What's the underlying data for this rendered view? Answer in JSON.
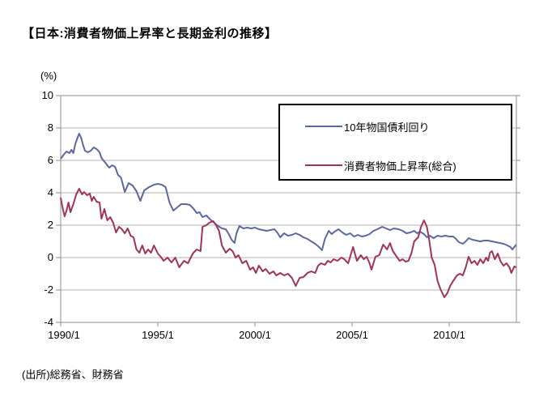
{
  "title": "【日本:消費者物価上昇率と長期金利の推移】",
  "y_axis_unit": "(%)",
  "source_note": "(出所)総務省、財務省",
  "colors": {
    "bond_yield_line": "#5d67a1",
    "cpi_line": "#a03358",
    "gridline": "#b3b3b3",
    "axis": "#8c8c8c",
    "text": "#000000",
    "legend_border": "#000000"
  },
  "chart_data": {
    "type": "line",
    "title": "【日本:消費者物価上昇率と長期金利の推移】",
    "xlabel": "",
    "ylabel": "(%)",
    "ylim": [
      -4,
      10
    ],
    "xlim": [
      1990.0,
      2013.46
    ],
    "grid": "horizontal",
    "legend_position": "top-right-box",
    "y_ticks": [
      10,
      8,
      6,
      4,
      2,
      0,
      -2,
      -4
    ],
    "x_ticks": [
      {
        "year": 1990,
        "label": "1990/1"
      },
      {
        "year": 1995,
        "label": "1995/1"
      },
      {
        "year": 2000,
        "label": "2000/1"
      },
      {
        "year": 2005,
        "label": "2005/1"
      },
      {
        "year": 2010,
        "label": "2010/1"
      }
    ],
    "series": [
      {
        "name": "10年物国債利回り",
        "color": "#5d67a1",
        "points": [
          [
            1990.0,
            6.1
          ],
          [
            1990.15,
            6.35
          ],
          [
            1990.3,
            6.55
          ],
          [
            1990.45,
            6.45
          ],
          [
            1990.55,
            6.65
          ],
          [
            1990.65,
            6.45
          ],
          [
            1990.75,
            7.0
          ],
          [
            1990.85,
            7.35
          ],
          [
            1990.95,
            7.65
          ],
          [
            1991.05,
            7.4
          ],
          [
            1991.15,
            6.95
          ],
          [
            1991.25,
            6.6
          ],
          [
            1991.4,
            6.5
          ],
          [
            1991.55,
            6.6
          ],
          [
            1991.7,
            6.8
          ],
          [
            1991.85,
            6.7
          ],
          [
            1992.0,
            6.5
          ],
          [
            1992.1,
            6.15
          ],
          [
            1992.3,
            5.85
          ],
          [
            1992.5,
            5.55
          ],
          [
            1992.65,
            5.7
          ],
          [
            1992.8,
            5.6
          ],
          [
            1992.95,
            5.1
          ],
          [
            1993.1,
            4.95
          ],
          [
            1993.3,
            4.05
          ],
          [
            1993.5,
            4.6
          ],
          [
            1993.7,
            4.45
          ],
          [
            1993.9,
            4.1
          ],
          [
            1994.1,
            3.5
          ],
          [
            1994.3,
            4.15
          ],
          [
            1994.55,
            4.35
          ],
          [
            1994.8,
            4.5
          ],
          [
            1995.0,
            4.55
          ],
          [
            1995.2,
            4.5
          ],
          [
            1995.4,
            4.35
          ],
          [
            1995.6,
            3.4
          ],
          [
            1995.8,
            2.9
          ],
          [
            1996.0,
            3.1
          ],
          [
            1996.2,
            3.3
          ],
          [
            1996.45,
            3.3
          ],
          [
            1996.65,
            3.25
          ],
          [
            1996.85,
            3.0
          ],
          [
            1997.0,
            2.75
          ],
          [
            1997.15,
            2.8
          ],
          [
            1997.3,
            2.5
          ],
          [
            1997.5,
            2.6
          ],
          [
            1997.7,
            2.35
          ],
          [
            1997.9,
            2.15
          ],
          [
            1998.1,
            1.95
          ],
          [
            1998.3,
            1.8
          ],
          [
            1998.5,
            1.75
          ],
          [
            1998.65,
            1.45
          ],
          [
            1998.8,
            1.1
          ],
          [
            1998.95,
            0.9
          ],
          [
            1999.05,
            1.5
          ],
          [
            1999.2,
            1.95
          ],
          [
            1999.4,
            1.8
          ],
          [
            1999.6,
            1.85
          ],
          [
            1999.8,
            1.8
          ],
          [
            2000.0,
            1.85
          ],
          [
            2000.2,
            1.75
          ],
          [
            2000.4,
            1.7
          ],
          [
            2000.6,
            1.65
          ],
          [
            2000.8,
            1.7
          ],
          [
            2001.0,
            1.75
          ],
          [
            2001.15,
            1.55
          ],
          [
            2001.3,
            1.25
          ],
          [
            2001.5,
            1.5
          ],
          [
            2001.7,
            1.35
          ],
          [
            2001.9,
            1.4
          ],
          [
            2002.1,
            1.5
          ],
          [
            2002.3,
            1.4
          ],
          [
            2002.5,
            1.25
          ],
          [
            2002.7,
            1.15
          ],
          [
            2002.9,
            1.0
          ],
          [
            2003.1,
            0.85
          ],
          [
            2003.3,
            0.65
          ],
          [
            2003.45,
            0.45
          ],
          [
            2003.6,
            1.15
          ],
          [
            2003.8,
            1.65
          ],
          [
            2003.95,
            1.45
          ],
          [
            2004.1,
            1.6
          ],
          [
            2004.3,
            1.75
          ],
          [
            2004.5,
            1.55
          ],
          [
            2004.7,
            1.4
          ],
          [
            2004.9,
            1.5
          ],
          [
            2005.1,
            1.3
          ],
          [
            2005.3,
            1.4
          ],
          [
            2005.5,
            1.3
          ],
          [
            2005.7,
            1.35
          ],
          [
            2005.9,
            1.45
          ],
          [
            2006.1,
            1.65
          ],
          [
            2006.3,
            1.75
          ],
          [
            2006.55,
            1.9
          ],
          [
            2006.75,
            1.8
          ],
          [
            2006.95,
            1.7
          ],
          [
            2007.15,
            1.8
          ],
          [
            2007.4,
            1.75
          ],
          [
            2007.6,
            1.65
          ],
          [
            2007.8,
            1.5
          ],
          [
            2008.0,
            1.55
          ],
          [
            2008.2,
            1.65
          ],
          [
            2008.35,
            1.5
          ],
          [
            2008.5,
            1.6
          ],
          [
            2008.7,
            1.45
          ],
          [
            2008.85,
            1.25
          ],
          [
            2009.0,
            1.35
          ],
          [
            2009.2,
            1.2
          ],
          [
            2009.4,
            1.35
          ],
          [
            2009.6,
            1.3
          ],
          [
            2009.8,
            1.35
          ],
          [
            2010.0,
            1.3
          ],
          [
            2010.2,
            1.3
          ],
          [
            2010.35,
            1.15
          ],
          [
            2010.5,
            0.95
          ],
          [
            2010.7,
            0.85
          ],
          [
            2010.85,
            1.0
          ],
          [
            2011.0,
            1.2
          ],
          [
            2011.2,
            1.1
          ],
          [
            2011.4,
            1.05
          ],
          [
            2011.6,
            1.0
          ],
          [
            2011.8,
            1.05
          ],
          [
            2012.0,
            1.05
          ],
          [
            2012.2,
            1.0
          ],
          [
            2012.4,
            0.95
          ],
          [
            2012.6,
            0.9
          ],
          [
            2012.8,
            0.85
          ],
          [
            2013.0,
            0.75
          ],
          [
            2013.15,
            0.65
          ],
          [
            2013.25,
            0.5
          ],
          [
            2013.45,
            0.8
          ]
        ]
      },
      {
        "name": "消費者物価上昇率(総合)",
        "color": "#a03358",
        "points": [
          [
            1990.0,
            3.7
          ],
          [
            1990.1,
            3.05
          ],
          [
            1990.2,
            2.55
          ],
          [
            1990.3,
            2.9
          ],
          [
            1990.4,
            3.4
          ],
          [
            1990.5,
            2.8
          ],
          [
            1990.65,
            3.3
          ],
          [
            1990.8,
            3.9
          ],
          [
            1990.95,
            4.25
          ],
          [
            1991.1,
            3.9
          ],
          [
            1991.2,
            4.05
          ],
          [
            1991.35,
            3.85
          ],
          [
            1991.5,
            3.95
          ],
          [
            1991.6,
            3.5
          ],
          [
            1991.7,
            3.75
          ],
          [
            1991.85,
            3.45
          ],
          [
            1992.0,
            3.4
          ],
          [
            1992.1,
            2.4
          ],
          [
            1992.25,
            3.0
          ],
          [
            1992.4,
            2.3
          ],
          [
            1992.55,
            2.5
          ],
          [
            1992.7,
            2.15
          ],
          [
            1992.85,
            1.55
          ],
          [
            1993.0,
            1.9
          ],
          [
            1993.15,
            1.75
          ],
          [
            1993.3,
            1.5
          ],
          [
            1993.45,
            1.8
          ],
          [
            1993.6,
            1.35
          ],
          [
            1993.75,
            1.25
          ],
          [
            1993.9,
            0.5
          ],
          [
            1994.05,
            0.3
          ],
          [
            1994.2,
            0.75
          ],
          [
            1994.35,
            0.25
          ],
          [
            1994.5,
            0.5
          ],
          [
            1994.65,
            0.3
          ],
          [
            1994.8,
            0.75
          ],
          [
            1995.0,
            0.25
          ],
          [
            1995.15,
            0.05
          ],
          [
            1995.3,
            -0.2
          ],
          [
            1995.5,
            0.0
          ],
          [
            1995.7,
            -0.3
          ],
          [
            1995.9,
            0.0
          ],
          [
            1996.1,
            -0.6
          ],
          [
            1996.35,
            -0.2
          ],
          [
            1996.55,
            -0.35
          ],
          [
            1996.8,
            0.25
          ],
          [
            1997.0,
            0.5
          ],
          [
            1997.2,
            0.4
          ],
          [
            1997.3,
            1.9
          ],
          [
            1997.5,
            2.0
          ],
          [
            1997.65,
            2.15
          ],
          [
            1997.85,
            2.25
          ],
          [
            1998.0,
            2.0
          ],
          [
            1998.15,
            1.65
          ],
          [
            1998.3,
            0.75
          ],
          [
            1998.5,
            0.3
          ],
          [
            1998.7,
            0.55
          ],
          [
            1998.85,
            0.4
          ],
          [
            1999.0,
            0.0
          ],
          [
            1999.15,
            0.15
          ],
          [
            1999.35,
            -0.35
          ],
          [
            1999.55,
            -0.2
          ],
          [
            1999.75,
            -0.75
          ],
          [
            1999.9,
            -0.6
          ],
          [
            2000.05,
            -0.95
          ],
          [
            2000.2,
            -0.5
          ],
          [
            2000.4,
            -0.85
          ],
          [
            2000.55,
            -0.7
          ],
          [
            2000.75,
            -1.0
          ],
          [
            2000.95,
            -0.85
          ],
          [
            2001.1,
            -1.1
          ],
          [
            2001.3,
            -0.95
          ],
          [
            2001.5,
            -1.1
          ],
          [
            2001.7,
            -1.0
          ],
          [
            2001.9,
            -1.25
          ],
          [
            2002.1,
            -1.75
          ],
          [
            2002.3,
            -1.25
          ],
          [
            2002.5,
            -1.2
          ],
          [
            2002.7,
            -0.95
          ],
          [
            2002.9,
            -0.85
          ],
          [
            2003.1,
            -0.95
          ],
          [
            2003.25,
            -0.5
          ],
          [
            2003.4,
            -0.35
          ],
          [
            2003.6,
            -0.45
          ],
          [
            2003.75,
            -0.2
          ],
          [
            2003.9,
            -0.3
          ],
          [
            2004.05,
            -0.1
          ],
          [
            2004.25,
            -0.2
          ],
          [
            2004.45,
            0.0
          ],
          [
            2004.6,
            -0.1
          ],
          [
            2004.8,
            -0.35
          ],
          [
            2005.05,
            0.65
          ],
          [
            2005.25,
            -0.2
          ],
          [
            2005.45,
            0.15
          ],
          [
            2005.6,
            -0.1
          ],
          [
            2005.75,
            0.05
          ],
          [
            2005.9,
            -0.35
          ],
          [
            2006.0,
            -0.75
          ],
          [
            2006.2,
            0.05
          ],
          [
            2006.4,
            0.15
          ],
          [
            2006.6,
            0.8
          ],
          [
            2006.8,
            0.5
          ],
          [
            2006.95,
            0.9
          ],
          [
            2007.1,
            0.4
          ],
          [
            2007.3,
            0.05
          ],
          [
            2007.45,
            -0.2
          ],
          [
            2007.6,
            -0.1
          ],
          [
            2007.75,
            -0.25
          ],
          [
            2007.9,
            -0.2
          ],
          [
            2008.05,
            0.25
          ],
          [
            2008.2,
            1.0
          ],
          [
            2008.4,
            1.25
          ],
          [
            2008.55,
            1.9
          ],
          [
            2008.7,
            2.3
          ],
          [
            2008.85,
            1.9
          ],
          [
            2008.95,
            1.25
          ],
          [
            2009.1,
            0.0
          ],
          [
            2009.25,
            -0.45
          ],
          [
            2009.4,
            -1.45
          ],
          [
            2009.55,
            -1.95
          ],
          [
            2009.75,
            -2.45
          ],
          [
            2009.9,
            -2.2
          ],
          [
            2010.05,
            -1.75
          ],
          [
            2010.2,
            -1.45
          ],
          [
            2010.4,
            -1.1
          ],
          [
            2010.55,
            -1.0
          ],
          [
            2010.7,
            -1.1
          ],
          [
            2010.85,
            -0.6
          ],
          [
            2011.0,
            0.05
          ],
          [
            2011.15,
            -0.35
          ],
          [
            2011.3,
            -0.2
          ],
          [
            2011.45,
            -0.45
          ],
          [
            2011.6,
            -0.1
          ],
          [
            2011.75,
            -0.35
          ],
          [
            2011.9,
            0.0
          ],
          [
            2012.0,
            -0.2
          ],
          [
            2012.1,
            0.3
          ],
          [
            2012.2,
            0.4
          ],
          [
            2012.35,
            -0.1
          ],
          [
            2012.5,
            0.25
          ],
          [
            2012.65,
            -0.25
          ],
          [
            2012.8,
            -0.5
          ],
          [
            2012.95,
            -0.35
          ],
          [
            2013.1,
            -0.6
          ],
          [
            2013.2,
            -0.95
          ],
          [
            2013.35,
            -0.55
          ],
          [
            2013.45,
            -0.6
          ]
        ]
      }
    ]
  }
}
